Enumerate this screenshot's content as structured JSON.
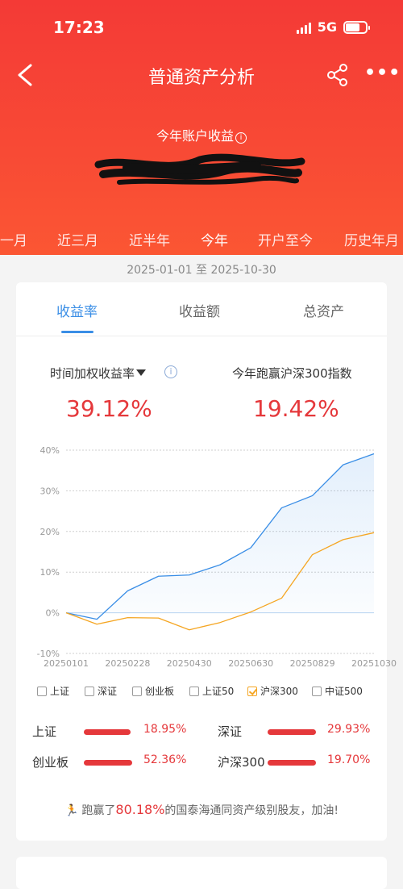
{
  "status_bar": {
    "time": "17:23",
    "network": "5G"
  },
  "nav": {
    "title": "普通资产分析",
    "back_icon": "chevron-left-icon",
    "share_icon": "share-icon",
    "more_icon": "more-icon"
  },
  "earnings": {
    "label": "今年账户收益",
    "info_icon": "info-icon"
  },
  "periods": [
    "一月",
    "近三月",
    "近半年",
    "今年",
    "开户至今",
    "历史年月"
  ],
  "active_period": "今年",
  "date_range": "2025-01-01 至 2025-10-30",
  "tabs": [
    "收益率",
    "收益额",
    "总资产"
  ],
  "active_tab": "收益率",
  "metrics": {
    "left_label": "时间加权收益率",
    "left_value": "39.12%",
    "right_label": "今年跑赢沪深300指数",
    "right_value": "19.42%"
  },
  "chart_data": {
    "type": "line",
    "x": [
      "20250101",
      "20250131",
      "20250228",
      "20250331",
      "20250430",
      "20250531",
      "20250630",
      "20250731",
      "20250829",
      "20250930",
      "20251030"
    ],
    "x_tick_labels": [
      "20250101",
      "20250228",
      "20250430",
      "20250630",
      "20250829",
      "20251030"
    ],
    "y_tick_labels": [
      "40%",
      "30%",
      "20%",
      "10%",
      "0%",
      "-10%"
    ],
    "ylim": [
      -10,
      40
    ],
    "grid": true,
    "series": [
      {
        "key": "account",
        "color": "#3a8ee6",
        "values": [
          0,
          -1.6,
          5.4,
          9.0,
          9.3,
          11.8,
          16.0,
          25.8,
          28.8,
          36.4,
          39.1
        ]
      },
      {
        "key": "hs300",
        "color": "#f5a623",
        "values": [
          0,
          -2.8,
          -1.2,
          -1.3,
          -4.2,
          -2.4,
          0.2,
          3.6,
          14.3,
          18.0,
          19.7
        ]
      }
    ]
  },
  "legend": [
    {
      "label": "上证",
      "checked": false
    },
    {
      "label": "深证",
      "checked": false
    },
    {
      "label": "创业板",
      "checked": false
    },
    {
      "label": "上证50",
      "checked": false
    },
    {
      "label": "沪深300",
      "checked": true
    },
    {
      "label": "中证500",
      "checked": false
    }
  ],
  "comparisons": [
    {
      "name": "上证",
      "value": "18.95%"
    },
    {
      "name": "深证",
      "value": "29.93%"
    },
    {
      "name": "创业板",
      "value": "52.36%"
    },
    {
      "name": "沪深300",
      "value": "19.70%"
    }
  ],
  "beat": {
    "prefix": "跑赢了",
    "percent": "80.18%",
    "suffix": "的国泰海通同资产级别股友，加油!"
  },
  "colors": {
    "header": "#f43a36",
    "accent_blue": "#3a8ee6",
    "accent_red": "#e5383b",
    "hs300_orange": "#f5a623"
  }
}
